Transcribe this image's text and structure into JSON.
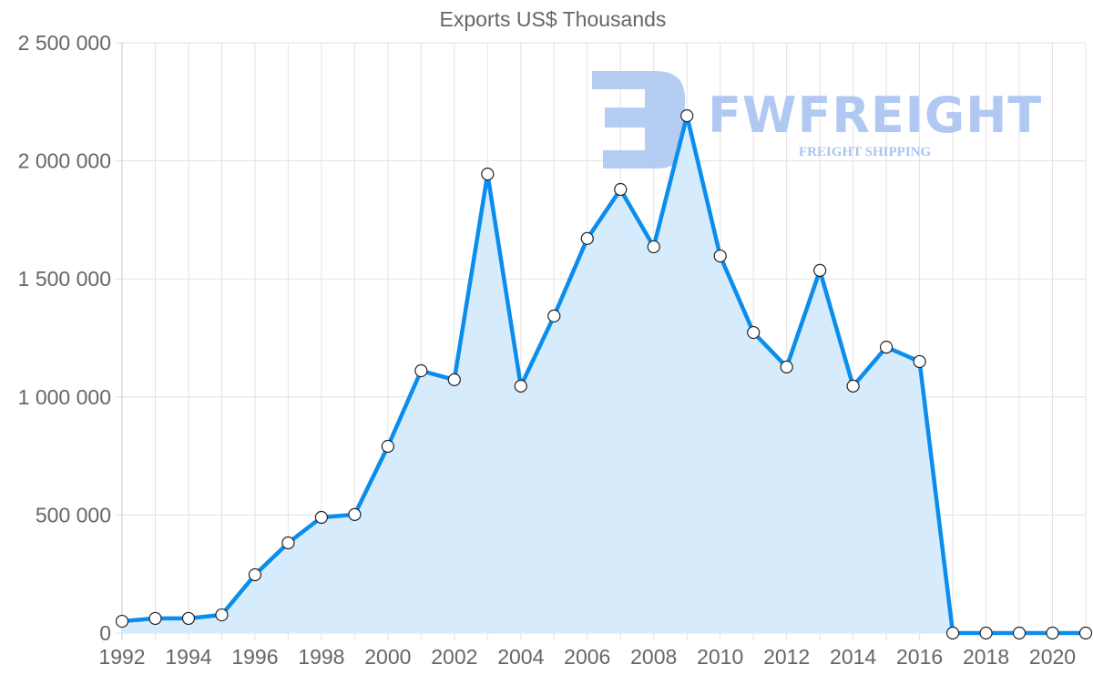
{
  "chart_data": {
    "type": "line",
    "title": "Exports US$ Thousands",
    "xlabel": "",
    "ylabel": "",
    "x": [
      1992,
      1993,
      1994,
      1995,
      1996,
      1997,
      1998,
      1999,
      2000,
      2001,
      2002,
      2003,
      2004,
      2005,
      2006,
      2007,
      2008,
      2009,
      2010,
      2011,
      2012,
      2013,
      2014,
      2015,
      2016,
      2017,
      2018,
      2019,
      2020,
      2021
    ],
    "series": [
      {
        "name": "Exports US$ Thousands",
        "values": [
          50000,
          62000,
          62000,
          77000,
          247000,
          382000,
          490000,
          502000,
          791000,
          1111000,
          1073000,
          1944000,
          1046000,
          1343000,
          1671000,
          1879000,
          1636000,
          2191000,
          1597000,
          1273000,
          1127000,
          1536000,
          1046000,
          1211000,
          1150000,
          0,
          0,
          0,
          0,
          0
        ],
        "color": "#0b8ded",
        "fill": "#d6ebfc",
        "point_fill": "#ffffff"
      }
    ],
    "ylim": [
      0,
      2500000
    ],
    "yticks": [
      0,
      500000,
      1000000,
      1500000,
      2000000,
      2500000
    ],
    "ytick_labels": [
      "0",
      "500 000",
      "1 000 000",
      "1 500 000",
      "2 000 000",
      "2 500 000"
    ],
    "xtick_labels": [
      "1992",
      "1994",
      "1996",
      "1998",
      "2000",
      "2002",
      "2004",
      "2006",
      "2008",
      "2010",
      "2012",
      "2014",
      "2016",
      "2018",
      "2020"
    ],
    "grid": true,
    "legend": null
  },
  "watermark": {
    "brand": "FWFREIGHT",
    "tagline": "FREIGHT SHIPPING",
    "color": "#a9c4f1"
  }
}
